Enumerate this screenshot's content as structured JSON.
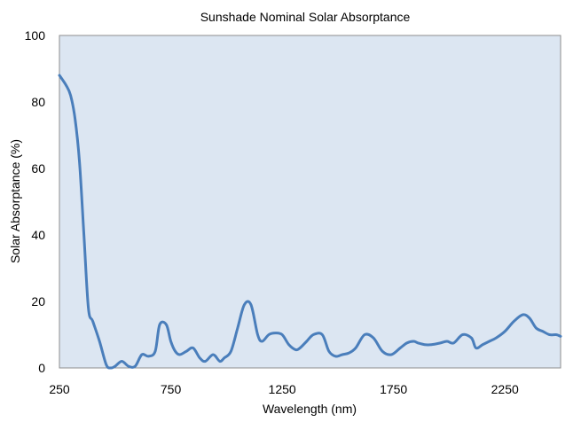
{
  "chart_data": {
    "type": "line",
    "title": "Sunshade Nominal Solar Absorptance",
    "xlabel": "Wavelength (nm)",
    "ylabel": "Solar Absorptance (%)",
    "xlim": [
      250,
      2500
    ],
    "ylim": [
      0,
      100
    ],
    "x_ticks": [
      250,
      750,
      1250,
      1750,
      2250
    ],
    "x_tick_labels": [
      "250",
      "750",
      "1250",
      "1750",
      "2250"
    ],
    "y_ticks": [
      0,
      20,
      40,
      60,
      80,
      100
    ],
    "y_tick_labels": [
      "0",
      "20",
      "40",
      "60",
      "80",
      "100"
    ],
    "grid": false,
    "legend": "none",
    "plot_background": "#dce6f2",
    "series_color": "#4a7ebb",
    "series": [
      {
        "x": [
          250,
          280,
          300,
          320,
          340,
          360,
          380,
          400,
          430,
          460,
          480,
          500,
          530,
          560,
          590,
          620,
          650,
          680,
          700,
          730,
          750,
          770,
          790,
          820,
          850,
          880,
          905,
          940,
          970,
          990,
          1020,
          1050,
          1080,
          1110,
          1140,
          1160,
          1190,
          1220,
          1250,
          1280,
          1310,
          1330,
          1360,
          1390,
          1430,
          1460,
          1490,
          1520,
          1550,
          1580,
          1620,
          1660,
          1700,
          1740,
          1780,
          1810,
          1840,
          1860,
          1890,
          1920,
          1960,
          1990,
          2020,
          2060,
          2100,
          2120,
          2150,
          2180,
          2210,
          2250,
          2290,
          2330,
          2360,
          2390,
          2420,
          2450,
          2480,
          2500
        ],
        "y": [
          88,
          85,
          82,
          75,
          62,
          40,
          18,
          14,
          8,
          1,
          0,
          0.5,
          2,
          0.5,
          0.5,
          4,
          3.5,
          5,
          13,
          13,
          8,
          5,
          4,
          5,
          6,
          3,
          2,
          4,
          2,
          3,
          5,
          12,
          19,
          19,
          10,
          8,
          10,
          10.5,
          10,
          7,
          5.5,
          6,
          8,
          10,
          10,
          5,
          3.5,
          4,
          4.5,
          6,
          10,
          9,
          5,
          4,
          6,
          7.5,
          8,
          7.5,
          7,
          7,
          7.5,
          8,
          7.5,
          10,
          9,
          6,
          7,
          8,
          9,
          11,
          14,
          16,
          15,
          12,
          11,
          10,
          10,
          9.5
        ]
      }
    ]
  }
}
